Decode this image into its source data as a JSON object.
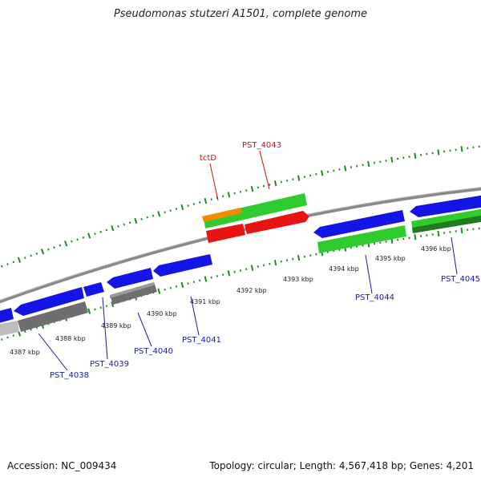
{
  "header": {
    "title": "Pseudomonas stutzeri A1501, complete genome"
  },
  "footer": {
    "accession": "Accession: NC_009434",
    "summary": "Topology: circular; Length: 4,567,418 bp; Genes: 4,201"
  },
  "colors": {
    "backbone": "#8a8a8a",
    "tick": "#1f8a1f",
    "blue_gene": "#1414e6",
    "green_gene": "#2ecc2e",
    "red_gene": "#e81414",
    "orange_gene": "#f08c00",
    "gray_gene": "#6e6e6e",
    "blue_label": "#1a1aa8",
    "red_label": "#cc1111"
  },
  "scale": {
    "unit": "kbp",
    "ticks": [
      4387,
      4388,
      4389,
      4390,
      4391,
      4392,
      4393,
      4394,
      4395,
      4396
    ],
    "tick_labels": [
      "4387 kbp",
      "4388 kbp",
      "4389 kbp",
      "4390 kbp",
      "4391 kbp",
      "4392 kbp",
      "4393 kbp",
      "4394 kbp",
      "4395 kbp",
      "4396 kbp"
    ]
  },
  "gene_labels": {
    "blue": [
      "PST_4038",
      "PST_4039",
      "PST_4040",
      "PST_4041",
      "PST_4044",
      "PST_4045"
    ],
    "red": [
      "tctD",
      "PST_4043"
    ]
  }
}
